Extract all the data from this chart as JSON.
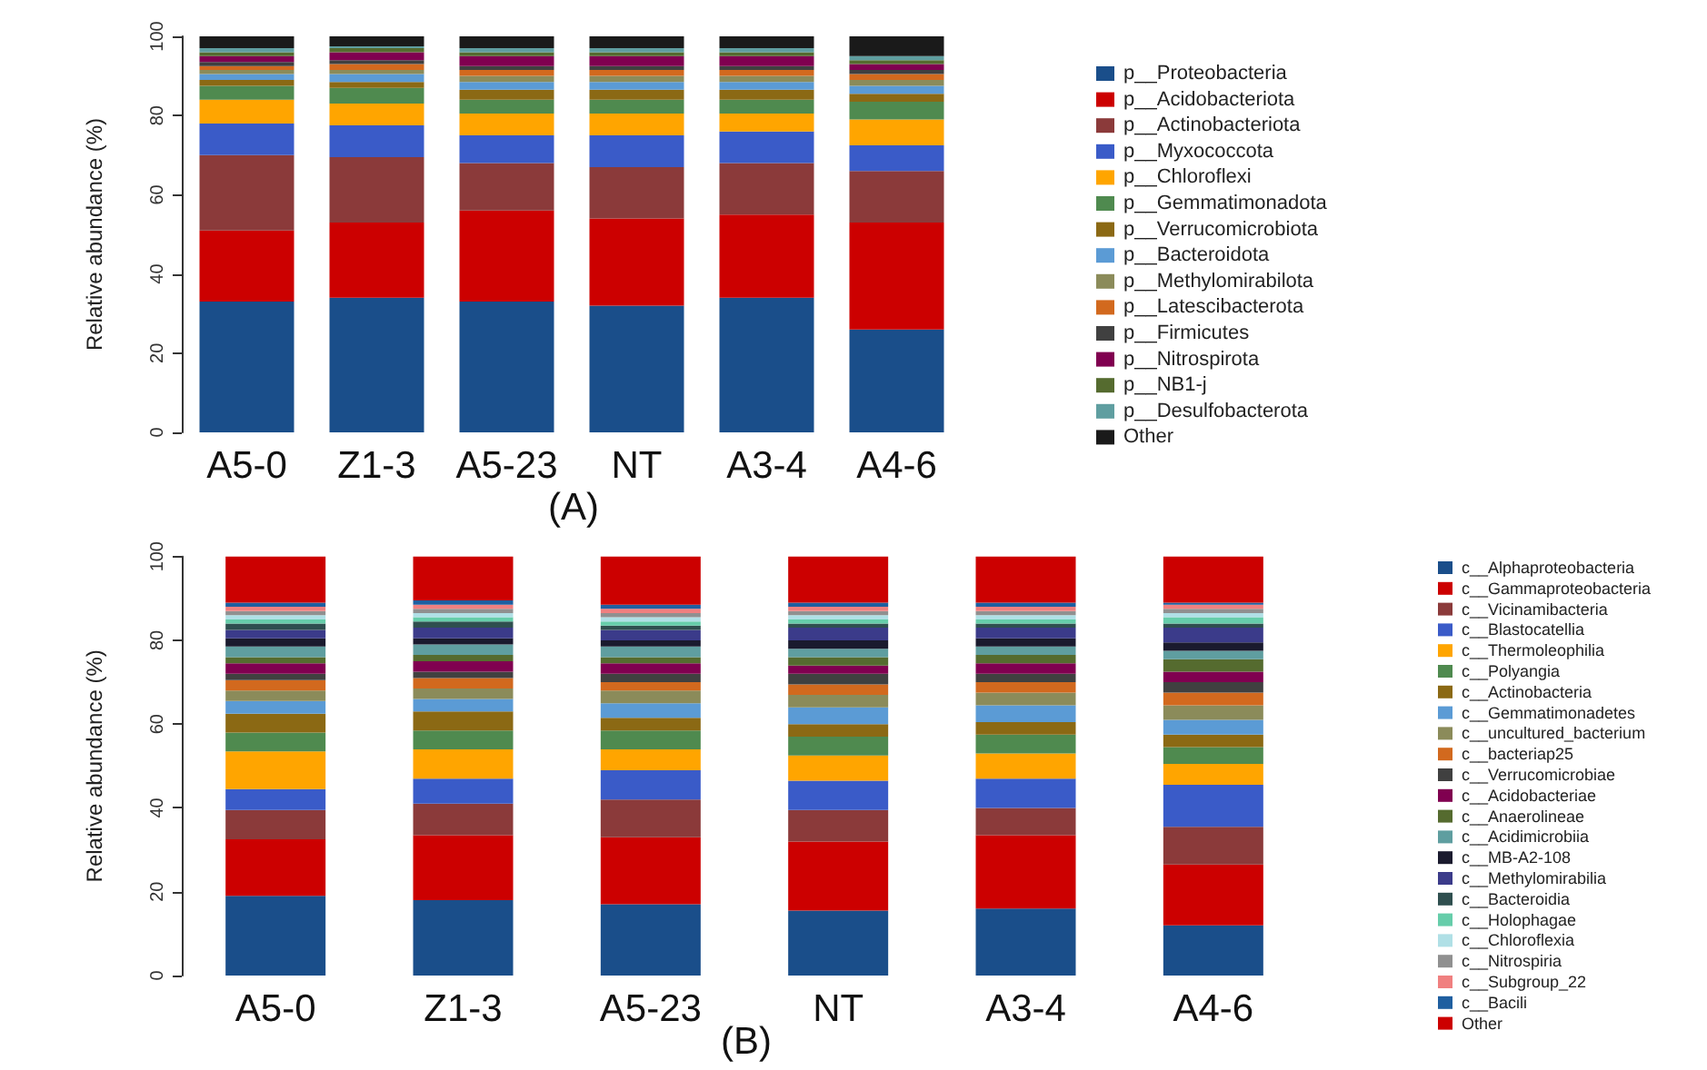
{
  "chart_data": [
    {
      "type": "bar",
      "title": "(A)",
      "ylabel": "Relative abundance (%)",
      "stacked": true,
      "legend": "right",
      "grid": false,
      "ylim": [
        0,
        100
      ],
      "yticks": [
        0,
        20,
        40,
        60,
        80,
        100
      ],
      "categories": [
        "A5-0",
        "Z1-3",
        "A5-23",
        "NT",
        "A3-4",
        "A4-6"
      ],
      "series": [
        {
          "name": "p__Proteobacteria",
          "color": "#1a4e8a",
          "values": [
            33,
            34,
            33,
            32,
            34,
            26
          ]
        },
        {
          "name": "p__Acidobacteriota",
          "color": "#cc0000",
          "values": [
            18,
            19,
            23,
            22,
            21,
            27
          ]
        },
        {
          "name": "p__Actinobacteriota",
          "color": "#8b3a3a",
          "values": [
            19,
            16.5,
            12,
            13,
            13,
            13
          ]
        },
        {
          "name": "p__Myxococcota",
          "color": "#3a5bc8",
          "values": [
            8,
            8,
            7,
            8,
            8,
            6.5
          ]
        },
        {
          "name": "p__Chloroflexi",
          "color": "#ffa500",
          "values": [
            6,
            5.5,
            5.5,
            5.5,
            4.5,
            6.5
          ]
        },
        {
          "name": "p__Gemmatimonadota",
          "color": "#4f8a4f",
          "values": [
            3.5,
            4,
            3.5,
            3.5,
            3.5,
            4.5
          ]
        },
        {
          "name": "p__Verrucomicrobiota",
          "color": "#8b6914",
          "values": [
            1.5,
            1.5,
            2.5,
            2.5,
            2.5,
            2
          ]
        },
        {
          "name": "p__Bacteroidota",
          "color": "#5b9bd5",
          "values": [
            1.5,
            2,
            2,
            2,
            2,
            2
          ]
        },
        {
          "name": "p__Methylomirabilota",
          "color": "#8b8b5a",
          "values": [
            1,
            1,
            1.5,
            1.5,
            1.5,
            1.5
          ]
        },
        {
          "name": "p__Latescibacterota",
          "color": "#d2691e",
          "values": [
            1,
            1.5,
            1.5,
            1.5,
            1.5,
            1.5
          ]
        },
        {
          "name": "p__Firmicutes",
          "color": "#404040",
          "values": [
            1,
            1,
            1,
            1,
            1,
            1
          ]
        },
        {
          "name": "p__Nitrospirota",
          "color": "#800050",
          "values": [
            1.5,
            2,
            2.5,
            2.5,
            2.5,
            1.5
          ]
        },
        {
          "name": "p__NB1-j",
          "color": "#556b2f",
          "values": [
            1,
            1,
            1,
            1,
            1,
            1
          ]
        },
        {
          "name": "p__Desulfobacterota",
          "color": "#5f9ea0",
          "values": [
            1,
            0.5,
            1,
            1,
            1,
            1
          ]
        },
        {
          "name": "Other",
          "color": "#1a1a1a",
          "values": [
            3,
            2.5,
            3,
            3,
            3,
            5
          ]
        }
      ]
    },
    {
      "type": "bar",
      "title": "(B)",
      "ylabel": "Relative abundance (%)",
      "stacked": true,
      "legend": "right",
      "grid": false,
      "ylim": [
        0,
        100
      ],
      "yticks": [
        0,
        20,
        40,
        60,
        80,
        100
      ],
      "categories": [
        "A5-0",
        "Z1-3",
        "A5-23",
        "NT",
        "A3-4",
        "A4-6"
      ],
      "series": [
        {
          "name": "c__Alphaproteobacteria",
          "color": "#1a4e8a",
          "values": [
            19,
            18,
            17,
            15.5,
            16,
            12
          ]
        },
        {
          "name": "c__Gammaproteobacteria",
          "color": "#cc0000",
          "values": [
            13.5,
            15.5,
            16,
            16.5,
            17.5,
            14.5
          ]
        },
        {
          "name": "c__Vicinamibacteria",
          "color": "#8b3a3a",
          "values": [
            7,
            7.5,
            9,
            7.5,
            6.5,
            9
          ]
        },
        {
          "name": "c__Blastocatellia",
          "color": "#3a5bc8",
          "values": [
            5,
            6,
            7,
            7,
            7,
            10
          ]
        },
        {
          "name": "c__Thermoleophilia",
          "color": "#ffa500",
          "values": [
            9,
            7,
            5,
            6,
            6,
            5
          ]
        },
        {
          "name": "c__Polyangia",
          "color": "#4f8a4f",
          "values": [
            4.5,
            4.5,
            4.5,
            4.5,
            4.5,
            4
          ]
        },
        {
          "name": "c__Actinobacteria",
          "color": "#8b6914",
          "values": [
            4.5,
            4.5,
            3,
            3,
            3,
            3
          ]
        },
        {
          "name": "c__Gemmatimonadetes",
          "color": "#5b9bd5",
          "values": [
            3,
            3,
            3.5,
            4,
            4,
            3.5
          ]
        },
        {
          "name": "c__uncultured_bacterium",
          "color": "#8b8b5a",
          "values": [
            2.5,
            2.5,
            3,
            3,
            3,
            3.5
          ]
        },
        {
          "name": "c__bacteriap25",
          "color": "#d2691e",
          "values": [
            2.5,
            2.5,
            2,
            2.5,
            2.5,
            3
          ]
        },
        {
          "name": "c__Verrucomicrobiae",
          "color": "#404040",
          "values": [
            1.5,
            1.5,
            2,
            2.5,
            2,
            2.5
          ]
        },
        {
          "name": "c__Acidobacteriae",
          "color": "#800050",
          "values": [
            2.5,
            2.5,
            2.5,
            2,
            2.5,
            2.5
          ]
        },
        {
          "name": "c__Anaerolineae",
          "color": "#556b2f",
          "values": [
            1.5,
            1.5,
            1.5,
            2,
            2,
            3
          ]
        },
        {
          "name": "c__Acidimicrobiia",
          "color": "#5f9ea0",
          "values": [
            2.5,
            2.5,
            2.5,
            2,
            2,
            2
          ]
        },
        {
          "name": "c__MB-A2-108",
          "color": "#1a1a2e",
          "values": [
            2,
            1.5,
            1.5,
            2,
            2,
            2
          ]
        },
        {
          "name": "c__Methylomirabilia",
          "color": "#3b3b8a",
          "values": [
            2,
            2.5,
            2.5,
            3,
            2.5,
            3.5
          ]
        },
        {
          "name": "c__Bacteroidia",
          "color": "#2f4f4f",
          "values": [
            1.5,
            1.5,
            1,
            1,
            1,
            1
          ]
        },
        {
          "name": "c__Holophagae",
          "color": "#66cdaa",
          "values": [
            1,
            1,
            1,
            1,
            1,
            1.5
          ]
        },
        {
          "name": "c__Chloroflexia",
          "color": "#b0e0e6",
          "values": [
            1,
            1,
            1,
            1,
            1,
            1
          ]
        },
        {
          "name": "c__Nitrospiria",
          "color": "#909090",
          "values": [
            1,
            1,
            1,
            1,
            1,
            1
          ]
        },
        {
          "name": "c__Subgroup_22",
          "color": "#f08080",
          "values": [
            1,
            1,
            1,
            1,
            1,
            1
          ]
        },
        {
          "name": "c__Bacili",
          "color": "#1f5fa0",
          "values": [
            1,
            1,
            1,
            1,
            1,
            0.5
          ]
        },
        {
          "name": "Other",
          "color": "#cc0000",
          "values": [
            11,
            10.5,
            11.5,
            11,
            11,
            11
          ]
        }
      ]
    }
  ]
}
